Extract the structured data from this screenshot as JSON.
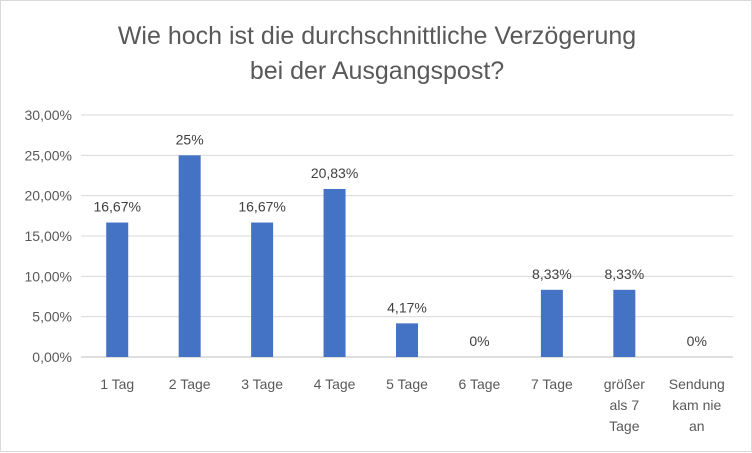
{
  "chart_data": {
    "type": "bar",
    "title_lines": [
      "Wie hoch ist die durchschnittliche Verzögerung",
      "bei der Ausgangspost?"
    ],
    "categories": [
      [
        "1 Tag"
      ],
      [
        "2 Tage"
      ],
      [
        "3 Tage"
      ],
      [
        "4 Tage"
      ],
      [
        "5 Tage"
      ],
      [
        "6 Tage"
      ],
      [
        "7 Tage"
      ],
      [
        "größer",
        "als 7",
        "Tage"
      ],
      [
        "Sendung",
        "kam nie",
        "an"
      ]
    ],
    "values": [
      16.67,
      25,
      16.67,
      20.83,
      4.17,
      0,
      8.33,
      8.33,
      0
    ],
    "data_labels": [
      "16,67%",
      "25%",
      "16,67%",
      "20,83%",
      "4,17%",
      "0%",
      "8,33%",
      "8,33%",
      "0%"
    ],
    "y_ticks": [
      "0,00%",
      "5,00%",
      "10,00%",
      "15,00%",
      "20,00%",
      "25,00%",
      "30,00%"
    ],
    "ylim": [
      0,
      30
    ],
    "grid": true,
    "legend": "none",
    "bar_color": "#4472c4",
    "grid_color": "#d9d9d9"
  }
}
